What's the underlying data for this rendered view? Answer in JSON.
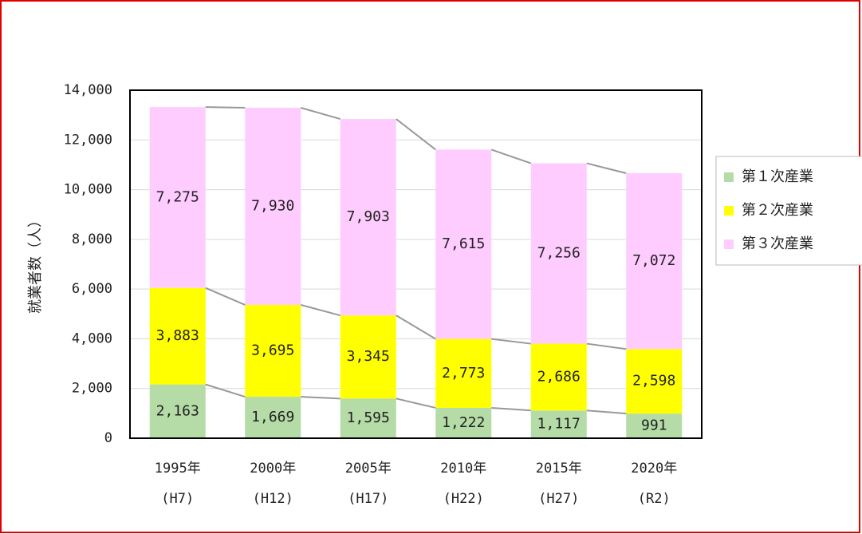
{
  "chart_data": {
    "type": "stacked_bar",
    "y_label": "就業者数（人）",
    "categories": [
      [
        "1995年",
        "(H7)"
      ],
      [
        "2000年",
        "(H12)"
      ],
      [
        "2005年",
        "(H17)"
      ],
      [
        "2010年",
        "(H22)"
      ],
      [
        "2015年",
        "(H27)"
      ],
      [
        "2020年",
        "(R2)"
      ]
    ],
    "series": [
      {
        "name": "第１次産業",
        "color": "#b5dba7",
        "values": [
          2163,
          1669,
          1595,
          1222,
          1117,
          991
        ],
        "value_labels": [
          "2,163",
          "1,669",
          "1,595",
          "1,222",
          "1,117",
          "991"
        ]
      },
      {
        "name": "第２次産業",
        "color": "#ffff00",
        "values": [
          3883,
          3695,
          3345,
          2773,
          2686,
          2598
        ],
        "value_labels": [
          "3,883",
          "3,695",
          "3,345",
          "2,773",
          "2,686",
          "2,598"
        ]
      },
      {
        "name": "第３次産業",
        "color": "#ffccff",
        "values": [
          7275,
          7930,
          7903,
          7615,
          7256,
          7072
        ],
        "value_labels": [
          "7,275",
          "7,930",
          "7,903",
          "7,615",
          "7,256",
          "7,072"
        ]
      }
    ],
    "ylim": [
      0,
      14000
    ],
    "yticks": [
      0,
      {
        "value": 2000,
        "label": "2,000"
      },
      {
        "value": 4000,
        "label": "4,000"
      },
      {
        "value": 6000,
        "label": "6,000"
      },
      {
        "value": 8000,
        "label": "8,000"
      },
      {
        "value": 10000,
        "label": "10,000"
      },
      {
        "value": 12000,
        "label": "12,000"
      },
      {
        "value": 14000,
        "label": "14,000"
      }
    ],
    "grid": true,
    "legend": "right"
  }
}
